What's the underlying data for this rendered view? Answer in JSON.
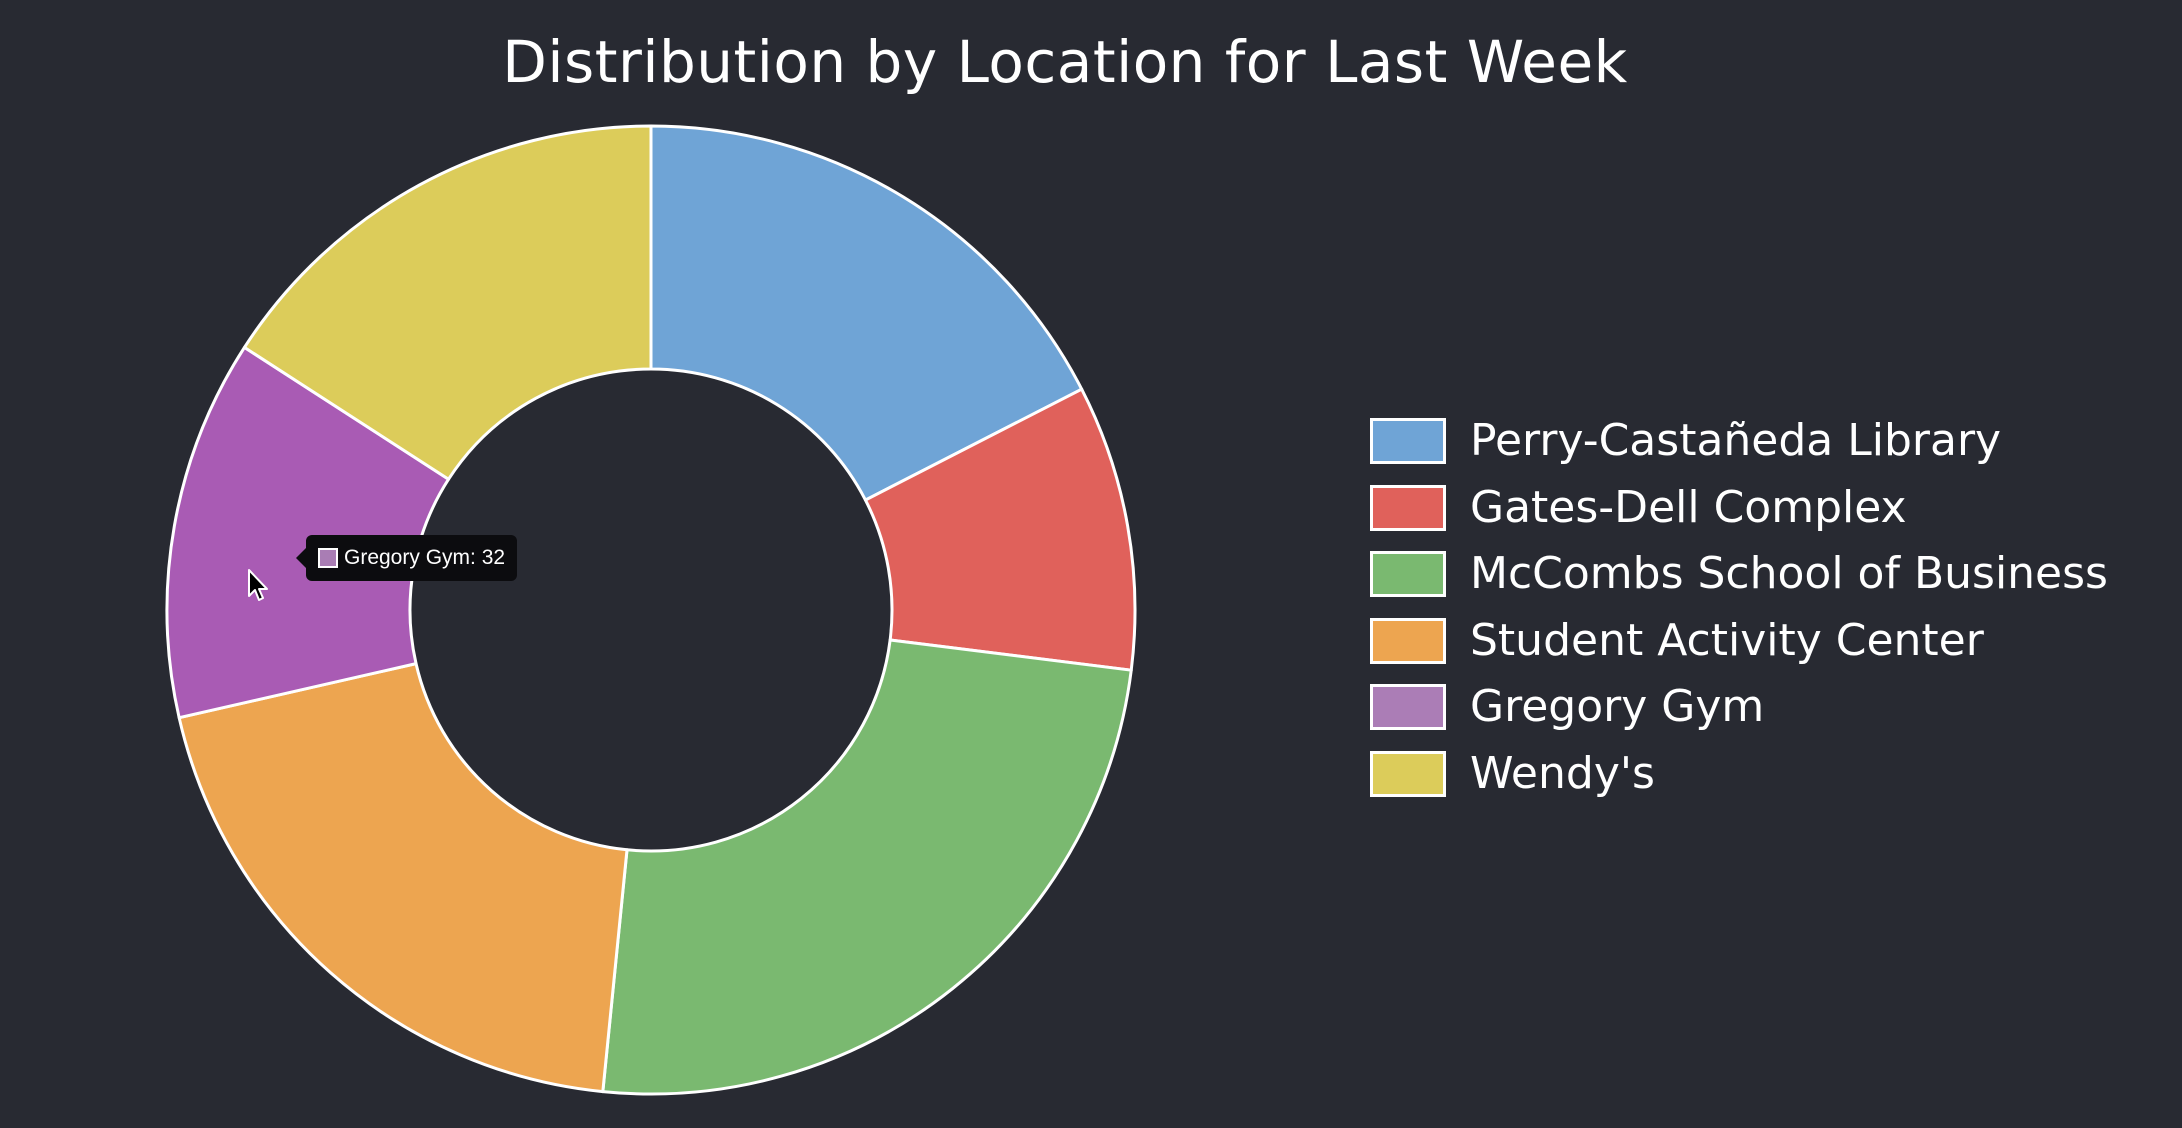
{
  "colors": {
    "background": "#282a32",
    "slice_border": "#ffffff"
  },
  "chart_data": {
    "type": "pie",
    "variant": "doughnut",
    "title": "Distribution by Location for Last Week",
    "legend_position": "right",
    "slices": [
      {
        "label": "Perry-Castañeda Library",
        "value": 44,
        "color": "#6fa4d6"
      },
      {
        "label": "Gates-Dell Complex",
        "value": 24,
        "color": "#e0615b"
      },
      {
        "label": "McCombs School of Business",
        "value": 62,
        "color": "#7ab970"
      },
      {
        "label": "Student Activity Center",
        "value": 50,
        "color": "#eda550"
      },
      {
        "label": "Gregory Gym",
        "value": 32,
        "color": "#a95bb4"
      },
      {
        "label": "Wendy's",
        "value": 40,
        "color": "#dccc5a"
      }
    ],
    "legend_swatch_colors": [
      "#6fa4d6",
      "#e0615b",
      "#7ab970",
      "#eda550",
      "#ab7db6",
      "#dccc5a"
    ]
  },
  "tooltip": {
    "text": "Gregory Gym: 32",
    "swatch_color": "#a97db4"
  },
  "cursor_icon": "arrow-pointer-icon"
}
